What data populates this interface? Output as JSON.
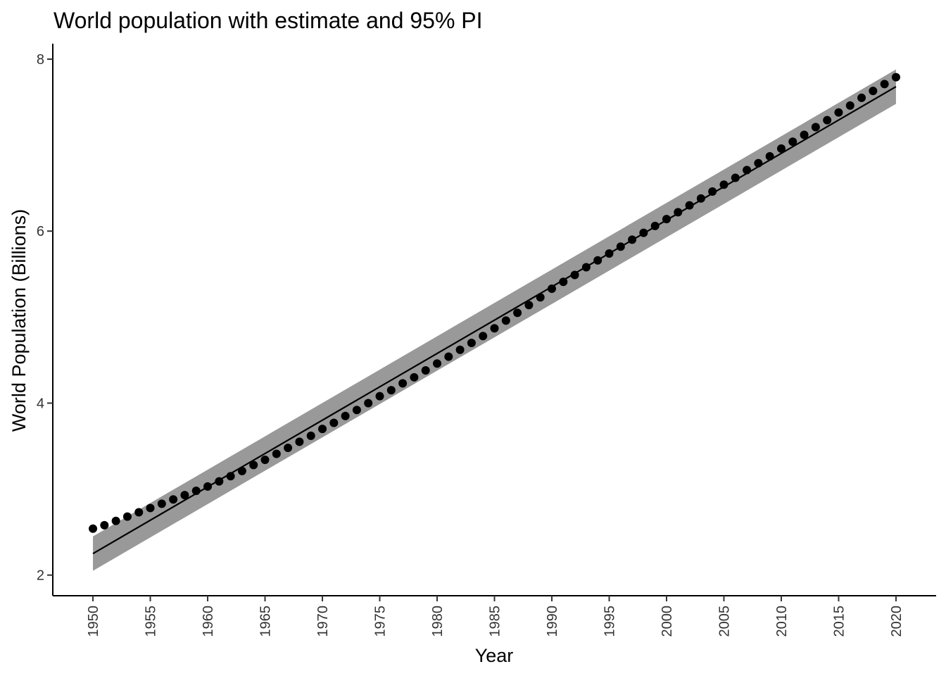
{
  "chart_data": {
    "type": "line",
    "title": "World population with estimate and 95% PI",
    "xlabel": "Year",
    "ylabel": "World Population (Billions)",
    "xlim": [
      1946.5,
      2023.5
    ],
    "ylim": [
      1.76,
      8.18
    ],
    "x_ticks": [
      1950,
      1955,
      1960,
      1965,
      1970,
      1975,
      1980,
      1985,
      1990,
      1995,
      2000,
      2005,
      2010,
      2015,
      2020
    ],
    "y_ticks": [
      2,
      4,
      6,
      8
    ],
    "grid": false,
    "legend": "none",
    "colors": {
      "points": "#000000",
      "fit_line": "#000000",
      "band": "#999999",
      "axis": "#000000"
    },
    "observed": {
      "x": [
        1950,
        1951,
        1952,
        1953,
        1954,
        1955,
        1956,
        1957,
        1958,
        1959,
        1960,
        1961,
        1962,
        1963,
        1964,
        1965,
        1966,
        1967,
        1968,
        1969,
        1970,
        1971,
        1972,
        1973,
        1974,
        1975,
        1976,
        1977,
        1978,
        1979,
        1980,
        1981,
        1982,
        1983,
        1984,
        1985,
        1986,
        1987,
        1988,
        1989,
        1990,
        1991,
        1992,
        1993,
        1994,
        1995,
        1996,
        1997,
        1998,
        1999,
        2000,
        2001,
        2002,
        2003,
        2004,
        2005,
        2006,
        2007,
        2008,
        2009,
        2010,
        2011,
        2012,
        2013,
        2014,
        2015,
        2016,
        2017,
        2018,
        2019,
        2020
      ],
      "y": [
        2.54,
        2.58,
        2.63,
        2.68,
        2.73,
        2.78,
        2.83,
        2.88,
        2.93,
        2.98,
        3.03,
        3.09,
        3.15,
        3.21,
        3.28,
        3.34,
        3.41,
        3.48,
        3.55,
        3.62,
        3.7,
        3.77,
        3.85,
        3.92,
        4.0,
        4.08,
        4.15,
        4.23,
        4.3,
        4.38,
        4.46,
        4.54,
        4.62,
        4.7,
        4.78,
        4.87,
        4.96,
        5.05,
        5.14,
        5.23,
        5.33,
        5.41,
        5.49,
        5.58,
        5.66,
        5.74,
        5.82,
        5.9,
        5.98,
        6.06,
        6.14,
        6.22,
        6.3,
        6.38,
        6.46,
        6.54,
        6.62,
        6.71,
        6.79,
        6.87,
        6.96,
        7.04,
        7.12,
        7.21,
        7.29,
        7.38,
        7.46,
        7.55,
        7.63,
        7.71,
        7.79
      ]
    },
    "estimate": {
      "x": [
        1950,
        2020
      ],
      "y": [
        2.25,
        7.68
      ]
    },
    "pi_95": {
      "x": [
        1950,
        2020
      ],
      "lower": [
        2.05,
        7.48
      ],
      "upper": [
        2.45,
        7.88
      ]
    }
  }
}
